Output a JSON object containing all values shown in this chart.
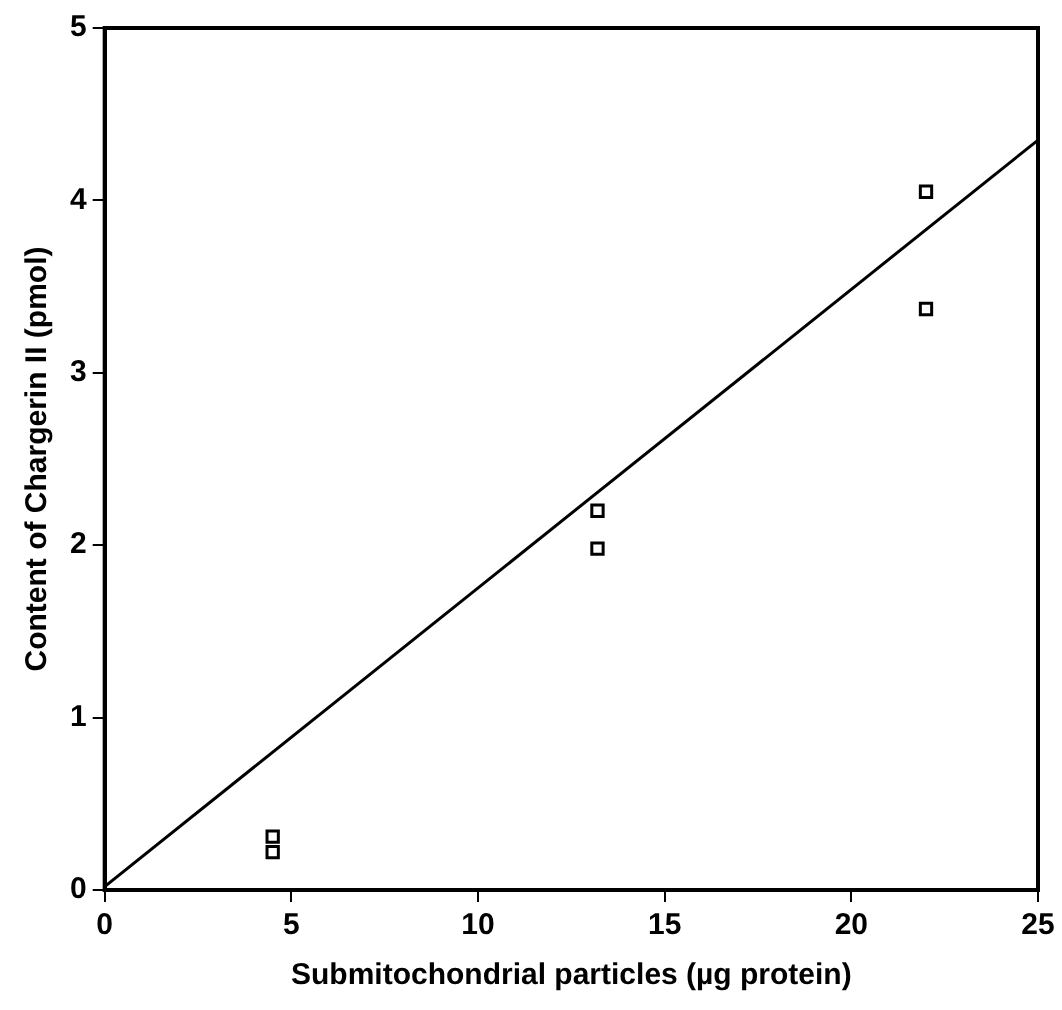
{
  "chart_data": {
    "type": "scatter",
    "xlabel": "Submitochondrial particles (µg protein)",
    "ylabel": "Content of Chargerin II (pmol)",
    "xlim": [
      0,
      25
    ],
    "xticks": [
      0,
      5,
      10,
      15,
      20,
      25
    ],
    "ylim": [
      0,
      5
    ],
    "yticks": [
      0,
      1,
      2,
      3,
      4,
      5
    ],
    "grid": false,
    "legend": false,
    "series": [
      {
        "type": "scatter",
        "color": "#000000",
        "marker": "square",
        "x": [
          4.5,
          4.5,
          13.2,
          13.2,
          22,
          22
        ],
        "values": [
          0.31,
          0.22,
          2.2,
          1.98,
          4.05,
          3.37
        ]
      },
      {
        "type": "line",
        "color": "#000000",
        "marker": "none",
        "line_style": "solid",
        "x": [
          0,
          25
        ],
        "values": [
          0.02,
          4.35
        ]
      }
    ]
  }
}
